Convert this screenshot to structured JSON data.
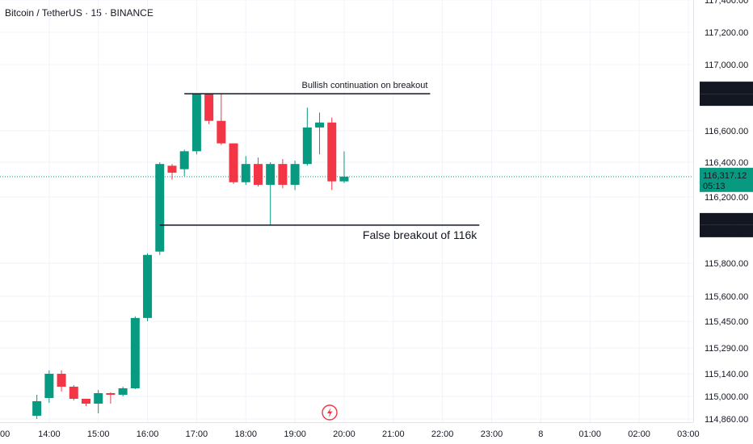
{
  "header": {
    "symbol_title": "Bitcoin / TetherUS · 15 · BINANCE"
  },
  "chart_data": {
    "type": "candlestick",
    "title": "Bitcoin / TetherUS · 15 · BINANCE",
    "x_tick_labels": [
      "00",
      "14:00",
      "15:00",
      "16:00",
      "17:00",
      "18:00",
      "19:00",
      "20:00",
      "21:00",
      "22:00",
      "23:00",
      "8",
      "01:00",
      "02:00",
      "03:00"
    ],
    "x_tick_hours": [
      13,
      14,
      15,
      16,
      17,
      18,
      19,
      20,
      21,
      22,
      23,
      24,
      25,
      26,
      27
    ],
    "y_tick_labels": [
      "117,400.00",
      "117,200.00",
      "117,000.00",
      "116,600.00",
      "116,400.00",
      "116,200.00",
      "115,800.00",
      "115,600.00",
      "115,450.00",
      "115,290.00",
      "115,140.00",
      "115,000.00",
      "114,860.00"
    ],
    "y_tick_values": [
      117400,
      117200,
      117000,
      116600,
      116400,
      116200,
      115800,
      115600,
      115450,
      115290,
      115140,
      115000,
      114860
    ],
    "scale_note": "non-linear price axis",
    "candles": [
      {
        "time": "13:45",
        "open": 114880,
        "high": 115010,
        "low": 114860,
        "close": 114970
      },
      {
        "time": "14:00",
        "open": 114990,
        "high": 115160,
        "low": 114960,
        "close": 115140
      },
      {
        "time": "14:15",
        "open": 115140,
        "high": 115160,
        "low": 115030,
        "close": 115060
      },
      {
        "time": "14:30",
        "open": 115060,
        "high": 115070,
        "low": 114975,
        "close": 114985
      },
      {
        "time": "14:45",
        "open": 114985,
        "high": 114985,
        "low": 114940,
        "close": 114955
      },
      {
        "time": "15:00",
        "open": 114955,
        "high": 115040,
        "low": 114895,
        "close": 115020
      },
      {
        "time": "15:15",
        "open": 115020,
        "high": 115025,
        "low": 114955,
        "close": 115010
      },
      {
        "time": "15:30",
        "open": 115010,
        "high": 115060,
        "low": 115000,
        "close": 115050
      },
      {
        "time": "15:45",
        "open": 115050,
        "high": 115480,
        "low": 115045,
        "close": 115470
      },
      {
        "time": "16:00",
        "open": 115470,
        "high": 115860,
        "low": 115450,
        "close": 115850
      },
      {
        "time": "16:15",
        "open": 115870,
        "high": 116400,
        "low": 115850,
        "close": 116390
      },
      {
        "time": "16:30",
        "open": 116380,
        "high": 116390,
        "low": 116300,
        "close": 116340
      },
      {
        "time": "16:45",
        "open": 116360,
        "high": 116480,
        "low": 116320,
        "close": 116470
      },
      {
        "time": "17:00",
        "open": 116470,
        "high": 116823,
        "low": 116450,
        "close": 116823
      },
      {
        "time": "17:15",
        "open": 116823,
        "high": 116823,
        "low": 116640,
        "close": 116660
      },
      {
        "time": "17:30",
        "open": 116660,
        "high": 116823,
        "low": 116510,
        "close": 116520
      },
      {
        "time": "17:45",
        "open": 116520,
        "high": 116520,
        "low": 116275,
        "close": 116285
      },
      {
        "time": "18:00",
        "open": 116285,
        "high": 116440,
        "low": 116270,
        "close": 116390
      },
      {
        "time": "18:15",
        "open": 116390,
        "high": 116430,
        "low": 116260,
        "close": 116270
      },
      {
        "time": "18:30",
        "open": 116270,
        "high": 116400,
        "low": 116030,
        "close": 116390
      },
      {
        "time": "18:45",
        "open": 116390,
        "high": 116420,
        "low": 116250,
        "close": 116270
      },
      {
        "time": "19:00",
        "open": 116270,
        "high": 116410,
        "low": 116240,
        "close": 116390
      },
      {
        "time": "19:15",
        "open": 116390,
        "high": 116740,
        "low": 116380,
        "close": 116620
      },
      {
        "time": "19:30",
        "open": 116620,
        "high": 116710,
        "low": 116450,
        "close": 116650
      },
      {
        "time": "19:45",
        "open": 116650,
        "high": 116680,
        "low": 116240,
        "close": 116290
      },
      {
        "time": "20:00",
        "open": 116290,
        "high": 116470,
        "low": 116280,
        "close": 116317.12
      }
    ],
    "current_price": {
      "label": "116,317.12",
      "countdown": "05:13",
      "value": 116317.12,
      "color": "#089981"
    },
    "horizontal_lines": [
      {
        "price_label": "116,823.74",
        "price_label_2": "116,823.74",
        "value": 116823.74,
        "from_time": "16:45",
        "to_time": "21:45",
        "text": "Bullish continuation on breakout",
        "text_position": "above-right"
      },
      {
        "price_label": "116,029.93",
        "price_label_2": "116,029.93",
        "value": 116029.93,
        "from_time": "16:15",
        "to_time": "22:45",
        "text": "False breakout of 116k",
        "text_position": "below-right"
      }
    ],
    "colors": {
      "up": "#089981",
      "down": "#f23645",
      "grid": "#f0f3fa",
      "axis_line": "#e0e3eb",
      "text": "#131722",
      "label_bg": "#131722",
      "label_text": "#ffffff",
      "replay_icon": "#f23645"
    },
    "grid": true
  }
}
